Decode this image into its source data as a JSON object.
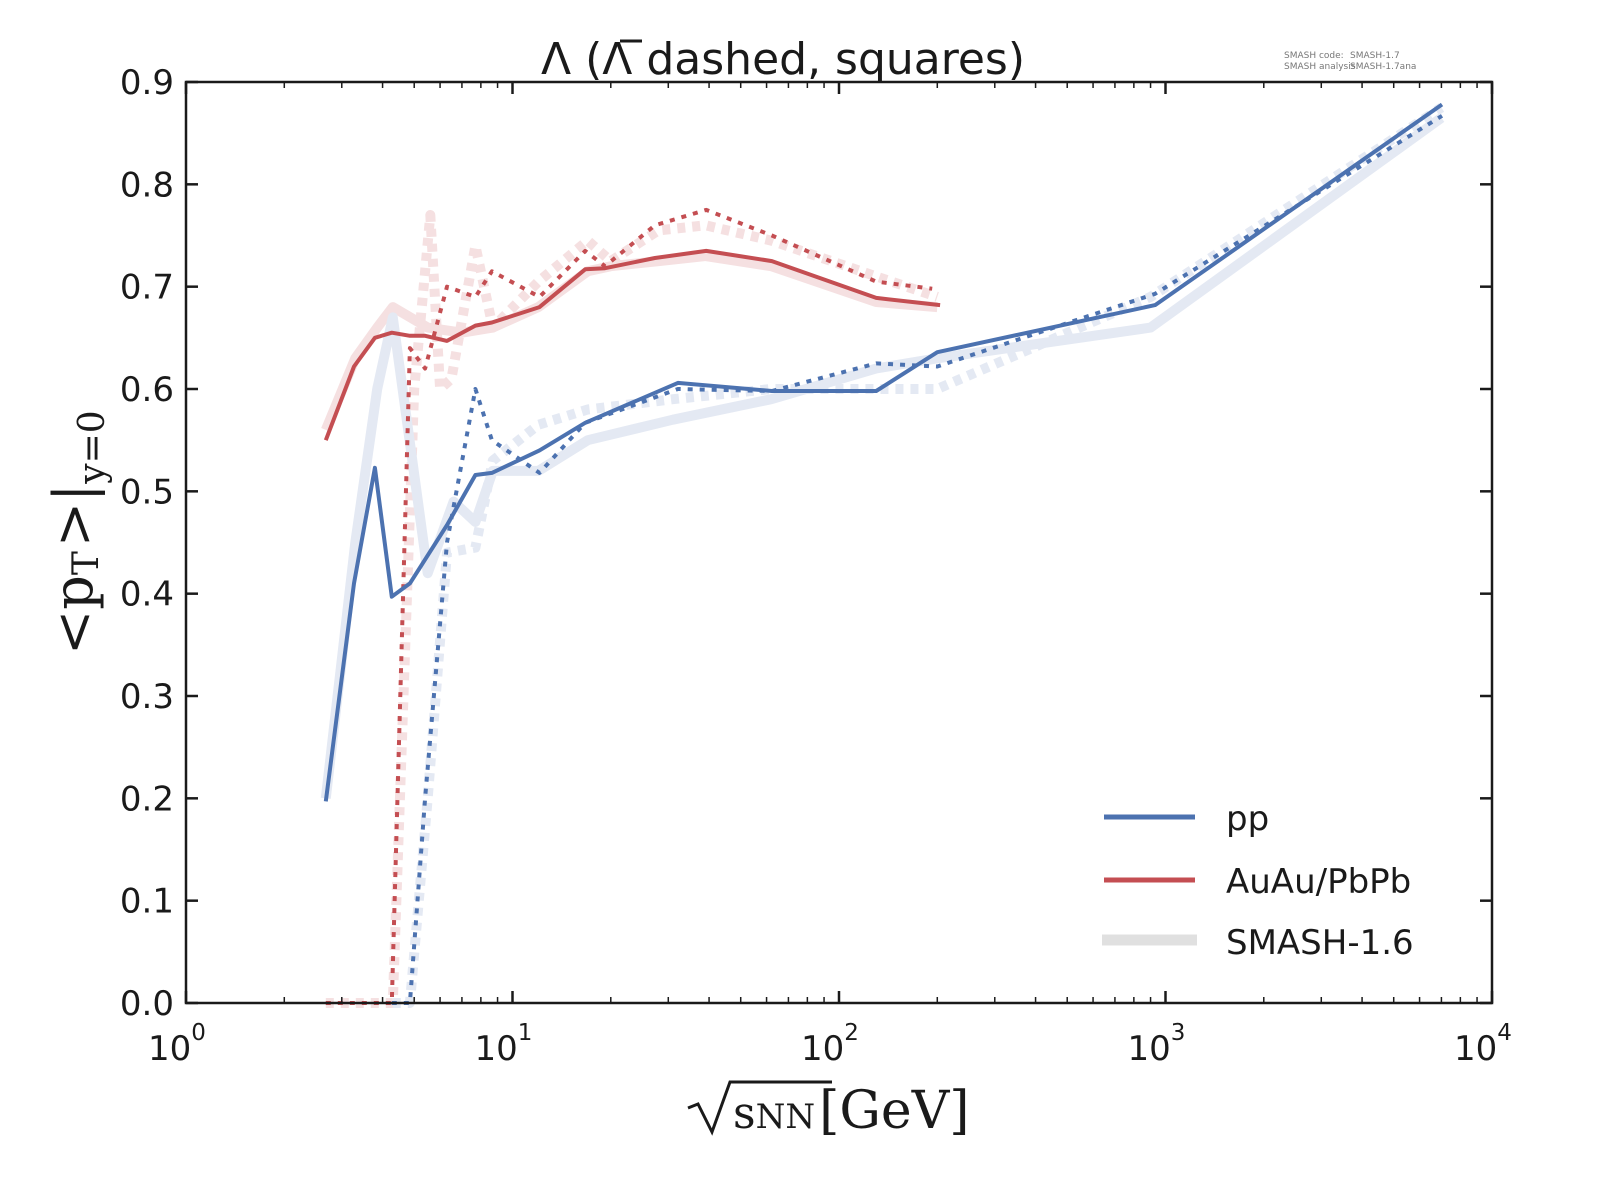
{
  "chart_data": {
    "type": "line",
    "title": "Λ (Λ̄ dashed, squares)",
    "title_parts": {
      "main": "Λ (",
      "bar_symbol": "Λ",
      "rest": " dashed, squares)"
    },
    "xlabel": "√sNN[GeV]",
    "xlabel_parts": {
      "var": "s",
      "sub": "NN",
      "unit": "[GeV]"
    },
    "ylabel": "<pT>|y=0",
    "ylabel_parts": {
      "main": "<p",
      "sub_T": "T",
      "close": ">|",
      "sub_y": "y=0"
    },
    "xscale": "log",
    "xlim": [
      1,
      10000
    ],
    "ylim": [
      0.0,
      0.9
    ],
    "grid": false,
    "legend_position": "lower-right",
    "x_ticks": [
      {
        "base": "10",
        "exp": "0",
        "value": 1
      },
      {
        "base": "10",
        "exp": "1",
        "value": 10
      },
      {
        "base": "10",
        "exp": "2",
        "value": 100
      },
      {
        "base": "10",
        "exp": "3",
        "value": 1000
      },
      {
        "base": "10",
        "exp": "4",
        "value": 10000
      }
    ],
    "y_ticks": [
      "0.0",
      "0.1",
      "0.2",
      "0.3",
      "0.4",
      "0.5",
      "0.6",
      "0.7",
      "0.8",
      "0.9"
    ],
    "colors": {
      "pp": "#4c72b0",
      "AuAu": "#c44e52",
      "pp_old": "#e4e9f3",
      "AuAu_old": "#f5e0e1",
      "legend_old": "#e0e0e0",
      "axis": "#1a1a1a"
    },
    "legend": [
      {
        "label": "pp",
        "color": "#4c72b0",
        "style": "solid"
      },
      {
        "label": "AuAu/PbPb",
        "color": "#c44e52",
        "style": "solid"
      },
      {
        "label": "SMASH-1.6",
        "color": "#e0e0e0",
        "style": "wide"
      }
    ],
    "series": [
      {
        "name": "AuAu/PbPb SMASH-1.6 Λ",
        "system": "AuAu",
        "particle": "Lambda",
        "version": "SMASH-1.6",
        "style": "old-solid",
        "x": [
          2.68,
          3.3,
          3.85,
          4.3,
          5.5,
          7.0,
          8.7,
          12.0,
          17.0,
          20.0,
          28.0,
          39.0,
          62.0,
          130.0,
          200.0
        ],
        "y": [
          0.56,
          0.63,
          0.66,
          0.68,
          0.66,
          0.655,
          0.66,
          0.68,
          0.715,
          0.72,
          0.725,
          0.73,
          0.72,
          0.685,
          0.68
        ]
      },
      {
        "name": "AuAu/PbPb SMASH-1.6 anti-Λ",
        "system": "AuAu",
        "particle": "AntiLambda",
        "version": "SMASH-1.6",
        "style": "old-dashed",
        "x": [
          2.68,
          3.3,
          3.85,
          4.3,
          5.0,
          5.6,
          6.0,
          6.5,
          7.7,
          8.7,
          12.0,
          17.0,
          20.0,
          28.0,
          39.0,
          62.0,
          130.0,
          200.0
        ],
        "y": [
          0.0,
          0.0,
          0.0,
          0.0,
          0.6,
          0.77,
          0.6,
          0.61,
          0.74,
          0.66,
          0.705,
          0.745,
          0.725,
          0.755,
          0.76,
          0.745,
          0.71,
          0.69
        ]
      },
      {
        "name": "pp SMASH-1.6 Λ",
        "system": "pp",
        "particle": "Lambda",
        "version": "SMASH-1.6",
        "style": "old-solid",
        "x": [
          2.68,
          3.3,
          3.85,
          4.3,
          5.5,
          6.6,
          7.7,
          8.7,
          12.0,
          17.0,
          31.0,
          62.0,
          130.0,
          200.0,
          900.0,
          7000.0
        ],
        "y": [
          0.2,
          0.45,
          0.6,
          0.67,
          0.42,
          0.49,
          0.47,
          0.52,
          0.52,
          0.55,
          0.57,
          0.59,
          0.62,
          0.63,
          0.66,
          0.865
        ]
      },
      {
        "name": "pp SMASH-1.6 anti-Λ",
        "system": "pp",
        "particle": "AntiLambda",
        "version": "SMASH-1.6",
        "style": "old-dashed",
        "x": [
          4.3,
          4.85,
          5.5,
          6.3,
          7.7,
          8.7,
          12.0,
          17.0,
          31.0,
          62.0,
          130.0,
          200.0,
          900.0,
          7000.0
        ],
        "y": [
          0.0,
          0.0,
          0.2,
          0.44,
          0.445,
          0.53,
          0.565,
          0.58,
          0.59,
          0.6,
          0.6,
          0.6,
          0.69,
          0.875
        ]
      },
      {
        "name": "AuAu/PbPb Λ",
        "system": "AuAu",
        "particle": "Lambda",
        "version": "SMASH-1.7",
        "style": "solid",
        "x": [
          2.68,
          3.27,
          3.79,
          4.27,
          4.85,
          5.4,
          6.3,
          7.7,
          8.65,
          12.1,
          16.7,
          19.2,
          27.3,
          39.2,
          62.3,
          130.0,
          204.0
        ],
        "y": [
          0.55,
          0.622,
          0.65,
          0.655,
          0.652,
          0.652,
          0.647,
          0.662,
          0.665,
          0.68,
          0.717,
          0.718,
          0.728,
          0.735,
          0.725,
          0.689,
          0.682
        ]
      },
      {
        "name": "AuAu/PbPb anti-Λ",
        "system": "AuAu",
        "particle": "AntiLambda",
        "version": "SMASH-1.7",
        "style": "dashed",
        "x": [
          2.68,
          3.27,
          3.79,
          4.27,
          4.85,
          5.4,
          6.3,
          7.7,
          8.65,
          12.1,
          16.7,
          19.2,
          27.3,
          39.2,
          62.3,
          130.0,
          193.0
        ],
        "y": [
          0.0,
          0.0,
          0.0,
          0.0,
          0.64,
          0.62,
          0.7,
          0.69,
          0.715,
          0.69,
          0.735,
          0.72,
          0.76,
          0.775,
          0.75,
          0.705,
          0.698
        ]
      },
      {
        "name": "pp Λ",
        "system": "pp",
        "particle": "Lambda",
        "version": "SMASH-1.7",
        "style": "solid",
        "x": [
          2.68,
          3.27,
          3.79,
          4.27,
          4.85,
          6.3,
          7.7,
          8.65,
          12.1,
          16.7,
          32.1,
          62.3,
          130.0,
          200.0,
          929.0,
          7030.0
        ],
        "y": [
          0.197,
          0.41,
          0.523,
          0.397,
          0.41,
          0.467,
          0.516,
          0.518,
          0.54,
          0.567,
          0.606,
          0.598,
          0.598,
          0.636,
          0.682,
          0.878
        ]
      },
      {
        "name": "pp anti-Λ",
        "system": "pp",
        "particle": "AntiLambda",
        "version": "SMASH-1.7",
        "style": "dashed",
        "x": [
          4.27,
          4.85,
          5.4,
          6.3,
          7.7,
          8.65,
          12.1,
          16.7,
          32.1,
          62.3,
          130.0,
          200.0,
          929.0,
          7030.0
        ],
        "y": [
          0.0,
          0.0,
          0.2,
          0.45,
          0.6,
          0.55,
          0.518,
          0.567,
          0.6,
          0.598,
          0.625,
          0.622,
          0.693,
          0.867
        ]
      }
    ]
  },
  "annotation": {
    "code_label": "SMASH code:",
    "code_value": "SMASH-1.7",
    "analysis_label": "SMASH analysis:",
    "analysis_value": "SMASH-1.7ana"
  }
}
